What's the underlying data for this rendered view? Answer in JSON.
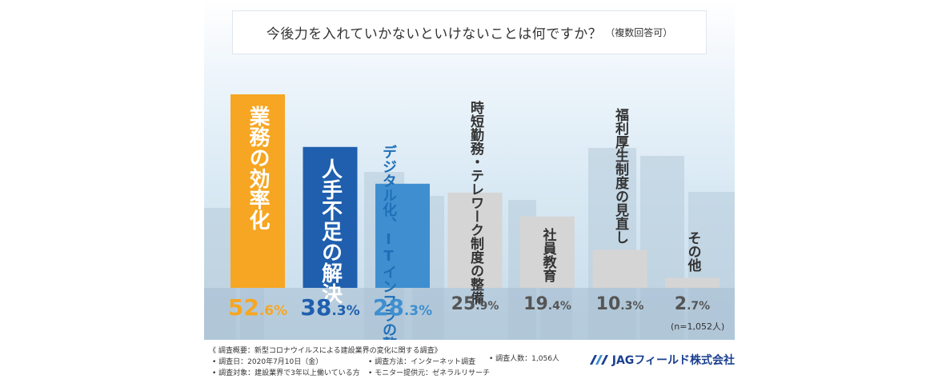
{
  "title": "今後力を入れていかないといけないことは何ですか？",
  "title_note": "（複数回答可）",
  "n_note": "(n=1,052人)",
  "colors": {
    "orange": "#f6a622",
    "navy": "#1f5fae",
    "blue": "#3f8fd0",
    "gray": "#d5d5d5",
    "pct_orange": "#f6a622",
    "pct_navy": "#1f5fae",
    "pct_blue": "#3f8fd0",
    "pct_gray": "#555555"
  },
  "chart_data": {
    "type": "bar",
    "title": "今後力を入れていかないといけないことは何ですか？（複数回答可）",
    "ylim": [
      0,
      60
    ],
    "grid": false,
    "categories": [
      "業務の効率化",
      "人手不足の解決",
      "デジタル化、ITインフラの整備",
      "時短勤務・テレワーク制度の整備",
      "社員教育",
      "福利厚生制度の見直し",
      "その他"
    ],
    "values": [
      52.6,
      38.3,
      28.3,
      25.9,
      19.4,
      10.3,
      2.7
    ],
    "bars": [
      {
        "label_lines": [
          "業務の効率化"
        ],
        "int": "52",
        "dec": ".6%",
        "color": "orange",
        "label_pos": "inside"
      },
      {
        "label_lines": [
          "人手不足の解決"
        ],
        "int": "38",
        "dec": ".3%",
        "color": "navy",
        "label_pos": "inside"
      },
      {
        "label_lines": [
          "デジタル化、",
          "ITインフラ",
          "の整備"
        ],
        "int": "28",
        "dec": ".3%",
        "color": "blue",
        "label_pos": "split"
      },
      {
        "label_lines": [
          "時短勤務・テレワーク制度の整備"
        ],
        "int": "25",
        "dec": ".9%",
        "color": "gray",
        "label_pos": "split"
      },
      {
        "label_lines": [
          "社員教育"
        ],
        "int": "19",
        "dec": ".4%",
        "color": "gray",
        "label_pos": "inside"
      },
      {
        "label_lines": [
          "福利厚生制度の見直し"
        ],
        "int": "10",
        "dec": ".3%",
        "color": "gray",
        "label_pos": "above"
      },
      {
        "label_lines": [
          "その他"
        ],
        "int": "2",
        "dec": ".7%",
        "color": "gray",
        "label_pos": "above"
      }
    ]
  },
  "footer": {
    "heading": "《 調査概要：新型コロナウイルスによる建設業界の変化に関する調査》",
    "date": "調査日：2020年7月10日（金）",
    "method": "調査方法：インターネット調査",
    "count": "調査人数：1,056人",
    "target": "調査対象：建設業界で3年以上働いている方",
    "monitor": "モニター提供元：ゼネラルリサーチ"
  },
  "logo": {
    "text": "JAGフィールド株式会社"
  }
}
